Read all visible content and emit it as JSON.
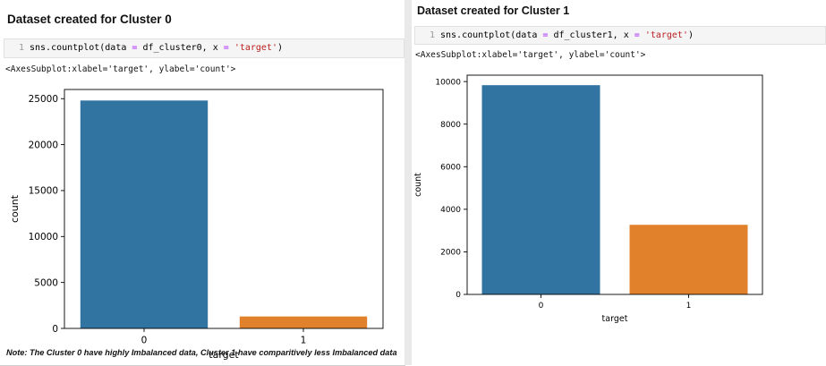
{
  "cell0": {
    "heading": "Dataset created for Cluster 0",
    "line_number": "1",
    "code": {
      "pre": "sns.countplot(data ",
      "op1": "=",
      "mid": " df_cluster0, x ",
      "op2": "=",
      "sp": " ",
      "str": "'target'",
      "post": ")"
    },
    "output": "<AxesSubplot:xlabel='target', ylabel='count'>"
  },
  "cell1": {
    "heading": "Dataset created for Cluster 1",
    "line_number": "1",
    "code": {
      "pre": "sns.countplot(data ",
      "op1": "=",
      "mid": " df_cluster1, x ",
      "op2": "=",
      "sp": " ",
      "str": "'target'",
      "post": ")"
    },
    "output": "<AxesSubplot:xlabel='target', ylabel='count'>",
    "note": "Note: The Cluster 0 have highly Imbalanced data, Cluster 1 have comparitively less Imbalanced data"
  },
  "chart_data": [
    {
      "type": "bar",
      "categories": [
        "0",
        "1"
      ],
      "values": [
        24800,
        1300
      ],
      "xlabel": "target",
      "ylabel": "count",
      "ylim": [
        0,
        26000
      ],
      "yticks": [
        0,
        5000,
        10000,
        15000,
        20000,
        25000
      ],
      "colors": [
        "#3274a1",
        "#e1812c"
      ],
      "grid": false
    },
    {
      "type": "bar",
      "categories": [
        "0",
        "1"
      ],
      "values": [
        9830,
        3270
      ],
      "xlabel": "target",
      "ylabel": "count",
      "ylim": [
        0,
        10300
      ],
      "yticks": [
        0,
        2000,
        4000,
        6000,
        8000,
        10000
      ],
      "colors": [
        "#3274a1",
        "#e1812c"
      ],
      "grid": false
    }
  ]
}
